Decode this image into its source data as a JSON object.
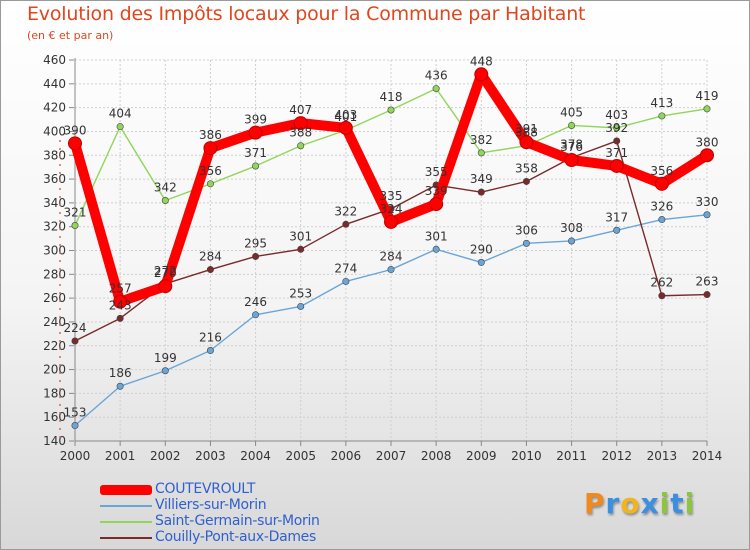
{
  "header": {
    "title": "Evolution des Impôts locaux pour la Commune par Habitant",
    "subtitle": "(en € et par an)"
  },
  "brand": {
    "letters": [
      {
        "char": "P",
        "color": "#f08a1e"
      },
      {
        "char": "r",
        "color": "#3b8fe0"
      },
      {
        "char": "o",
        "color": "#f0b41e"
      },
      {
        "char": "x",
        "color": "#3b8fe0"
      },
      {
        "char": "i",
        "color": "#8cc63e"
      },
      {
        "char": "t",
        "color": "#3b8fe0"
      },
      {
        "char": "i",
        "color": "#8cc63e"
      }
    ]
  },
  "chart_data": {
    "type": "line",
    "title": "Evolution des Impôts locaux pour la Commune par Habitant",
    "subtitle": "(en € et par an)",
    "xlabel": "",
    "ylabel": "",
    "ylim": [
      140,
      460
    ],
    "y_ticks": [
      140,
      160,
      180,
      200,
      220,
      240,
      260,
      280,
      300,
      320,
      340,
      360,
      380,
      400,
      420,
      440,
      460
    ],
    "grid": true,
    "legend_position": "bottom-left",
    "x": [
      "2000",
      "2001",
      "2002",
      "2003",
      "2004",
      "2005",
      "2006",
      "2007",
      "2008",
      "2009",
      "2010",
      "2011",
      "2012",
      "2013",
      "2014"
    ],
    "series": [
      {
        "name": "Villiers-sur-Morin",
        "color": "#6aa5d8",
        "values": [
          153,
          186,
          199,
          216,
          246,
          253,
          274,
          284,
          301,
          290,
          306,
          308,
          317,
          326,
          330
        ]
      },
      {
        "name": "Saint-Germain-sur-Morin",
        "color": "#8fd65a",
        "values": [
          321,
          404,
          342,
          356,
          371,
          388,
          401,
          418,
          436,
          382,
          388,
          405,
          403,
          413,
          419
        ]
      },
      {
        "name": "Couilly-Pont-aux-Dames",
        "color": "#7a2a2a",
        "values": [
          224,
          243,
          272,
          284,
          295,
          301,
          322,
          335,
          355,
          349,
          358,
          378,
          392,
          262,
          263
        ]
      },
      {
        "name": "COUTEVROULT",
        "color": "#ff0000",
        "values": [
          390,
          257,
          270,
          386,
          399,
          407,
          403,
          324,
          339,
          448,
          391,
          376,
          371,
          356,
          380
        ]
      }
    ],
    "data_labels": [
      [
        "153",
        "186",
        "199",
        "216",
        "246",
        "253",
        "274",
        "284",
        "301",
        "290",
        "306",
        "308",
        "317",
        "326",
        "330"
      ],
      [
        "321",
        "404",
        "342",
        "356",
        "371",
        "388",
        "401",
        "418",
        "436",
        "382",
        "388",
        "405",
        "403",
        "413",
        "419"
      ],
      [
        "224",
        "243",
        "272",
        "284",
        "295",
        "301",
        "322",
        "335",
        "355",
        "349",
        "358",
        "378",
        "392",
        "262",
        "263"
      ],
      [
        "390",
        "257",
        "270",
        "386",
        "399",
        "407",
        "403",
        "324",
        "339",
        "448",
        "391",
        "376",
        "371",
        "356",
        "380"
      ]
    ]
  },
  "legend": {
    "items": [
      {
        "label": "COUTEVROULT",
        "color": "#ff0000",
        "thickness": 10
      },
      {
        "label": "Villiers-sur-Morin",
        "color": "#6aa5d8",
        "thickness": 2
      },
      {
        "label": "Saint-Germain-sur-Morin",
        "color": "#8fd65a",
        "thickness": 2
      },
      {
        "label": "Couilly-Pont-aux-Dames",
        "color": "#7a2a2a",
        "thickness": 2
      }
    ]
  }
}
